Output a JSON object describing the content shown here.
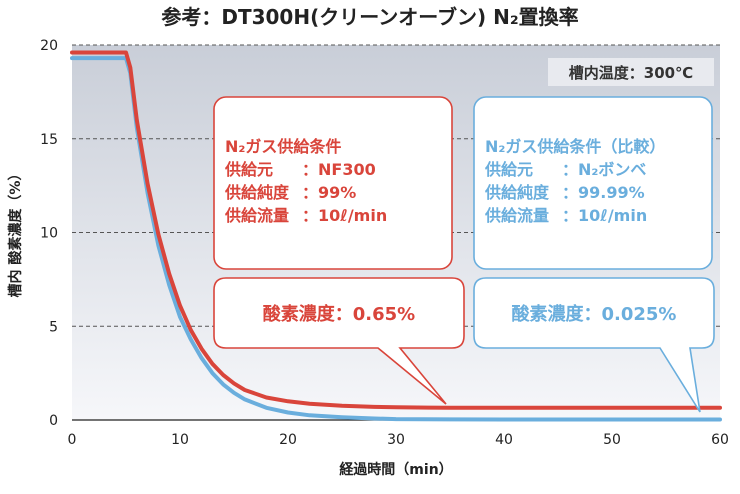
{
  "chart_data": {
    "type": "line",
    "title": "参考：DT300H(クリーンオーブン) N₂置換率",
    "xlabel": "経過時間（min）",
    "ylabel": "槽内 酸素濃度（%）",
    "xlim": [
      0,
      60
    ],
    "ylim": [
      0,
      20
    ],
    "xticks": [
      "0",
      "10",
      "20",
      "30",
      "40",
      "50",
      "60"
    ],
    "yticks": [
      "0",
      "5",
      "10",
      "15",
      "20"
    ],
    "grid": "horizontal-dashed",
    "annotation_temp": "槽内温度：300℃",
    "series": [
      {
        "name": "NF300",
        "color": "#d9453b",
        "x": [
          0,
          5,
          5.4,
          6,
          7,
          8,
          9,
          10,
          11,
          12,
          13,
          14,
          15,
          16,
          18,
          20,
          22,
          25,
          28,
          30,
          33,
          35,
          40,
          50,
          60
        ],
        "y": [
          19.6,
          19.6,
          18.8,
          16.0,
          12.6,
          9.9,
          7.8,
          6.1,
          4.8,
          3.8,
          3.0,
          2.4,
          1.95,
          1.6,
          1.2,
          1.0,
          0.87,
          0.76,
          0.7,
          0.68,
          0.66,
          0.65,
          0.65,
          0.65,
          0.65
        ]
      },
      {
        "name": "N₂ボンベ",
        "color": "#6aaedd",
        "x": [
          0,
          5,
          5.4,
          6,
          7,
          8,
          9,
          10,
          11,
          12,
          13,
          14,
          15,
          16,
          18,
          20,
          22,
          25,
          28,
          30,
          35,
          40,
          50,
          60
        ],
        "y": [
          19.3,
          19.3,
          18.5,
          15.6,
          12.1,
          9.3,
          7.2,
          5.5,
          4.3,
          3.3,
          2.5,
          1.9,
          1.45,
          1.1,
          0.65,
          0.4,
          0.25,
          0.15,
          0.08,
          0.05,
          0.03,
          0.025,
          0.025,
          0.025
        ]
      }
    ],
    "callout_nf": {
      "title": "N₂ガス供給条件",
      "rows": [
        [
          "供給元",
          "：NF300"
        ],
        [
          "供給純度",
          "：99%"
        ],
        [
          "供給流量",
          "：10ℓ/min"
        ]
      ],
      "result": "酸素濃度：0.65%"
    },
    "callout_cyl": {
      "title": "N₂ガス供給条件（比較）",
      "rows": [
        [
          "供給元",
          "：N₂ボンベ"
        ],
        [
          "供給純度",
          "：99.99%"
        ],
        [
          "供給流量",
          "：10ℓ/min"
        ]
      ],
      "result": "酸素濃度：0.025%"
    },
    "colors": {
      "nf": "#d9453b",
      "cyl": "#6aaedd",
      "plot_bg_top": "#c9ced8",
      "plot_bg_bottom": "#f6f7fa"
    }
  }
}
